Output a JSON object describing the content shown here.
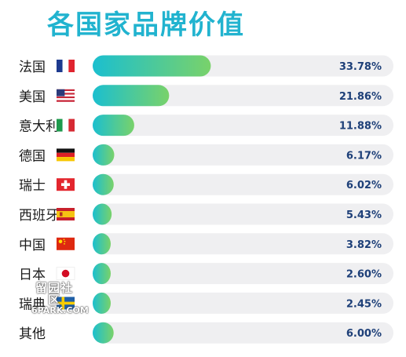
{
  "title": "各国家品牌价值",
  "chart_data": {
    "type": "bar",
    "orientation": "horizontal",
    "categories": [
      "法国",
      "美国",
      "意大利",
      "德国",
      "瑞士",
      "西班牙",
      "中国",
      "日本",
      "瑞典",
      "其他"
    ],
    "flags": [
      "france-flag-icon",
      "usa-flag-icon",
      "italy-flag-icon",
      "germany-flag-icon",
      "switzerland-flag-icon",
      "spain-flag-icon",
      "china-flag-icon",
      "japan-flag-icon",
      "sweden-flag-icon",
      null
    ],
    "values": [
      33.78,
      21.86,
      11.88,
      6.17,
      6.02,
      5.43,
      3.82,
      2.6,
      2.45,
      6.0
    ],
    "labels": [
      "33.78%",
      "21.86%",
      "11.88%",
      "6.17%",
      "6.02%",
      "5.43%",
      "3.82%",
      "2.60%",
      "2.45%",
      "6.00%"
    ],
    "xlim": [
      0,
      100
    ],
    "grid": false,
    "colors": {
      "bar_start": "#1bbfcf",
      "bar_end": "#79d26a",
      "track": "#efeff1",
      "label": "#1d3f78",
      "title": "#21b3cf"
    }
  },
  "watermark": {
    "line1": "留园社区",
    "line2": "6PARK.COM"
  }
}
